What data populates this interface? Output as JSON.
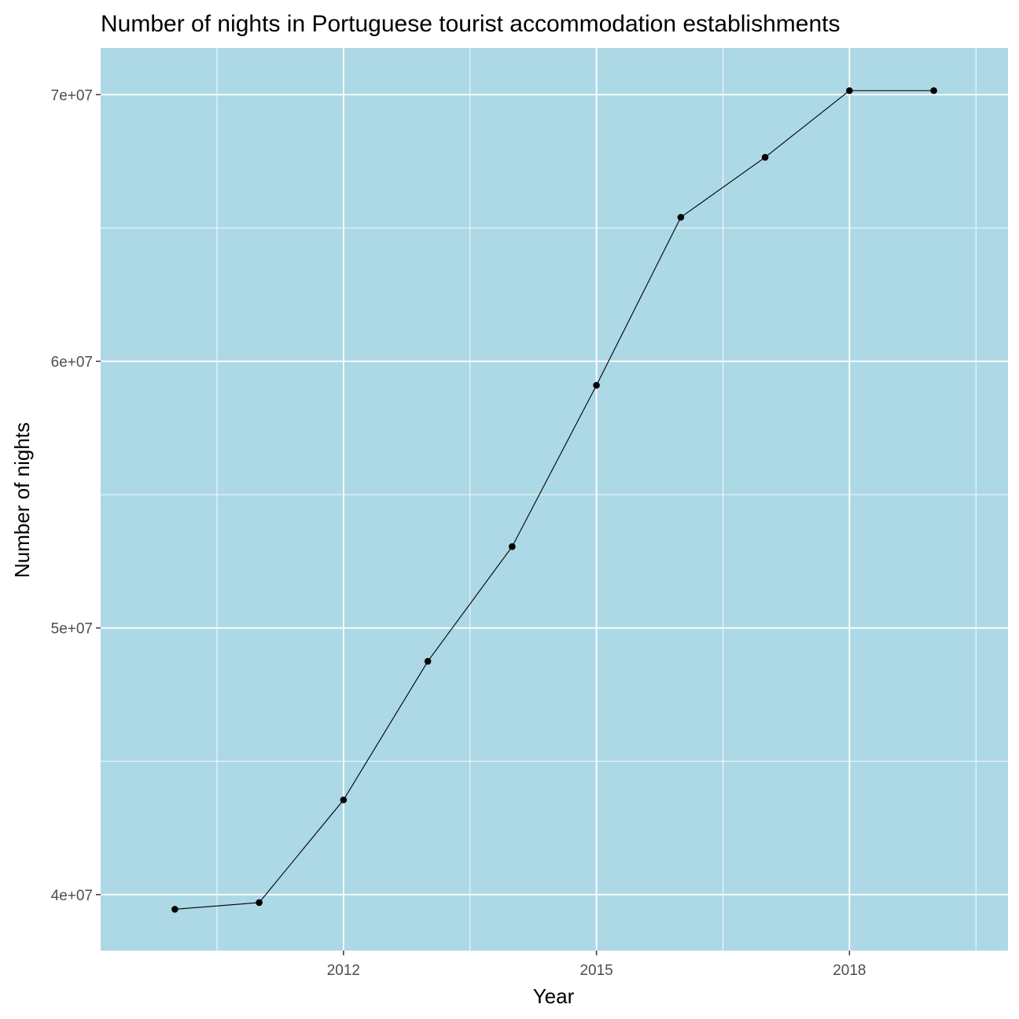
{
  "chart_data": {
    "type": "line",
    "title": "Number of nights in Portuguese tourist accommodation establishments",
    "xlabel": "Year",
    "ylabel": "Number of nights",
    "x": [
      2010,
      2011,
      2012,
      2013,
      2014,
      2015,
      2016,
      2017,
      2018,
      2019
    ],
    "series": [
      {
        "values": [
          39450000,
          39700000,
          43550000,
          48750000,
          53050000,
          59100000,
          65400000,
          67650000,
          70150000,
          70150000
        ]
      }
    ],
    "xlim": [
      2009.12,
      2019.88
    ],
    "ylim": [
      37900000,
      71750000
    ],
    "x_ticks": [
      {
        "value": 2012,
        "label": "2012"
      },
      {
        "value": 2015,
        "label": "2015"
      },
      {
        "value": 2018,
        "label": "2018"
      }
    ],
    "x_minor_ticks": [
      2010.5,
      2013.5,
      2016.5,
      2019.5
    ],
    "y_ticks": [
      {
        "value": 40000000,
        "label": "4e+07"
      },
      {
        "value": 50000000,
        "label": "5e+07"
      },
      {
        "value": 60000000,
        "label": "6e+07"
      },
      {
        "value": 70000000,
        "label": "7e+07"
      }
    ],
    "y_minor_ticks": [
      45000000,
      55000000,
      65000000
    ],
    "grid": true,
    "colors": {
      "panel_background": "#ADD8E6",
      "grid": "#FFFFFF",
      "line": "#000000",
      "point": "#000000",
      "tick_text": "#4D4D4D",
      "axis_ticks": "#333333"
    }
  }
}
